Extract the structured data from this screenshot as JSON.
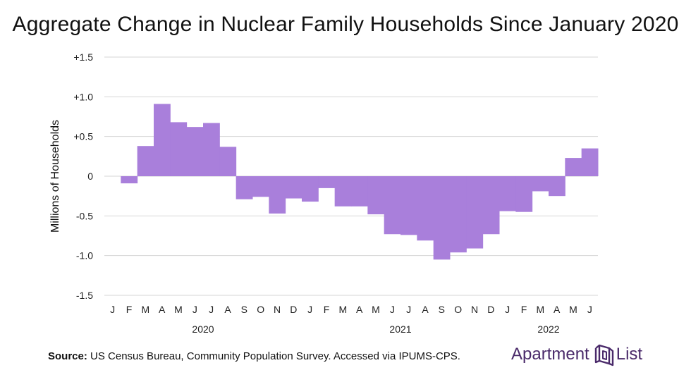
{
  "chart_data": {
    "type": "bar",
    "title": "Aggregate Change in Nuclear Family Households Since January 2020",
    "ylabel": "Millions of Households",
    "xlabel": "",
    "ylim": [
      -1.5,
      1.5
    ],
    "yticks": [
      {
        "value": 1.5,
        "label": "+1.5"
      },
      {
        "value": 1.0,
        "label": "+1.0"
      },
      {
        "value": 0.5,
        "label": "+0.5"
      },
      {
        "value": 0,
        "label": "0"
      },
      {
        "value": -0.5,
        "label": "-0.5"
      },
      {
        "value": -1.0,
        "label": "-1.0"
      },
      {
        "value": -1.5,
        "label": "-1.5"
      }
    ],
    "grid": true,
    "bar_color": "#a97fdb",
    "categories": [
      "J",
      "F",
      "M",
      "A",
      "M",
      "J",
      "J",
      "A",
      "S",
      "O",
      "N",
      "D",
      "J",
      "F",
      "M",
      "A",
      "M",
      "J",
      "J",
      "A",
      "S",
      "O",
      "N",
      "D",
      "J",
      "F",
      "M",
      "A",
      "M",
      "J"
    ],
    "values": [
      0,
      -0.09,
      0.38,
      0.91,
      0.68,
      0.62,
      0.67,
      0.37,
      -0.29,
      -0.26,
      -0.47,
      -0.28,
      -0.32,
      -0.15,
      -0.38,
      -0.38,
      -0.48,
      -0.73,
      -0.74,
      -0.81,
      -1.05,
      -0.96,
      -0.91,
      -0.73,
      -0.44,
      -0.45,
      -0.19,
      -0.25,
      0.23,
      0.35
    ],
    "year_labels": [
      {
        "label": "2020",
        "category_index": 5.5
      },
      {
        "label": "2021",
        "category_index": 17.5
      },
      {
        "label": "2022",
        "category_index": 26.5
      }
    ]
  },
  "footer": {
    "source_label": "Source:",
    "source_text": " US Census Bureau, Community Population Survey. Accessed via IPUMS-CPS."
  },
  "brand": {
    "name_part1": "Apartment",
    "name_part2": "List",
    "logo_color": "#4a2a6a"
  }
}
